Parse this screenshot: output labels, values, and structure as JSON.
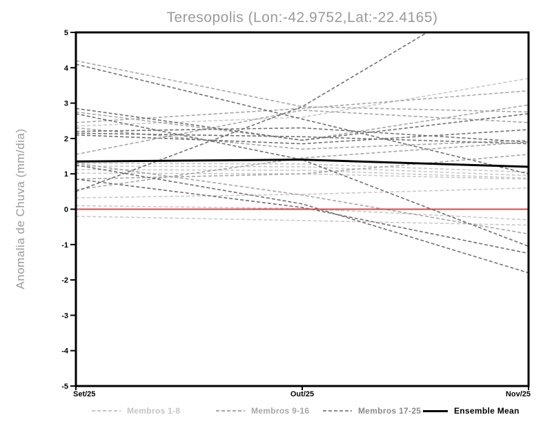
{
  "title": "Teresopolis (Lon:-42.9752,Lat:-22.4165)",
  "ylabel": "Anomalia de Chuva (mm/dia)",
  "chart_data": {
    "type": "line",
    "x_categories": [
      "Set/25",
      "Out/25",
      "Nov/25"
    ],
    "ylim": [
      -5,
      5
    ],
    "yticks": [
      5,
      4,
      3,
      2,
      1,
      0,
      -1,
      -2,
      -3,
      -4,
      -5
    ],
    "grid": false,
    "frame_color": "#000000",
    "series": [
      {
        "group": "Membros 1-8",
        "color": "#c9c9c9",
        "style": "dashed",
        "members": [
          [
            2.35,
            2.6,
            3.7
          ],
          [
            1.3,
            1.28,
            1.05
          ],
          [
            1.22,
            1.2,
            0.95
          ],
          [
            1.12,
            1.1,
            0.88
          ],
          [
            1.02,
            1.0,
            0.85
          ],
          [
            0.32,
            0.42,
            0.6
          ],
          [
            0.1,
            0.02,
            -0.3
          ],
          [
            -0.2,
            -0.32,
            -0.45
          ]
        ]
      },
      {
        "group": "Membros 9-16",
        "color": "#a6a6a6",
        "style": "dashed",
        "members": [
          [
            4.2,
            2.9,
            2.75
          ],
          [
            2.45,
            2.85,
            3.35
          ],
          [
            1.55,
            2.8,
            2.45
          ],
          [
            2.75,
            1.95,
            2.95
          ],
          [
            0.85,
            1.0,
            1.55
          ],
          [
            1.3,
            0.4,
            -0.7
          ],
          [
            0.55,
            1.45,
            1.9
          ],
          [
            2.3,
            1.7,
            1.95
          ]
        ]
      },
      {
        "group": "Membros 17-25",
        "color": "#6f6f6f",
        "style": "dashed",
        "members": [
          [
            4.1,
            2.55,
            1.0
          ],
          [
            2.85,
            1.95,
            2.7
          ],
          [
            2.7,
            1.4,
            -1.05
          ],
          [
            2.2,
            2.3,
            1.9
          ],
          [
            2.1,
            1.85,
            2.25
          ],
          [
            1.25,
            0.15,
            -1.8
          ],
          [
            0.5,
            2.9,
            6.7
          ],
          [
            0.85,
            0.05,
            -1.25
          ],
          [
            2.15,
            2.05,
            1.85
          ]
        ]
      }
    ],
    "ensemble_mean": {
      "name": "Ensemble Mean",
      "color": "#000000",
      "values": [
        1.35,
        1.4,
        1.2
      ]
    },
    "zero_line": {
      "y": 0,
      "color": "#e84040"
    },
    "legend": [
      {
        "label": "Membros 1-8",
        "color": "#c4c4c4",
        "style": "dashed"
      },
      {
        "label": "Membros 9-16",
        "color": "#a6a6a6",
        "style": "dashed"
      },
      {
        "label": "Membros 17-25",
        "color": "#8a8a8a",
        "style": "dashed"
      },
      {
        "label": "Ensemble Mean",
        "color": "#000000",
        "style": "solid"
      }
    ],
    "legend_position": "bottom"
  }
}
